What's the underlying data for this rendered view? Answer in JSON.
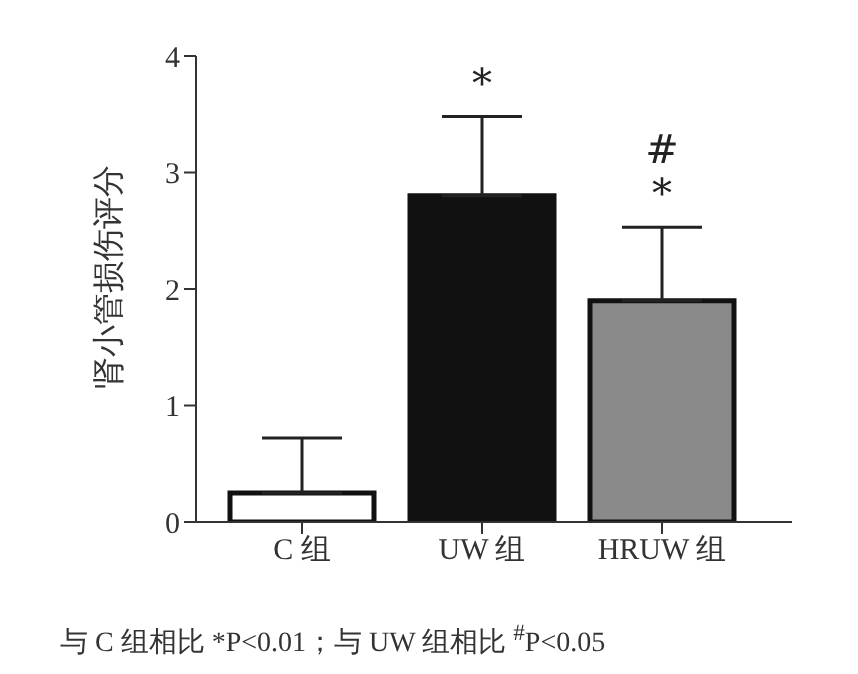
{
  "chart_data": {
    "type": "bar",
    "ylabel": "肾小管损伤评分",
    "categories": [
      "C 组",
      "UW 组",
      "HRUW 组"
    ],
    "values": [
      0.25,
      2.8,
      1.9
    ],
    "errors": [
      [
        0.25,
        0.72
      ],
      [
        2.8,
        3.48
      ],
      [
        1.9,
        2.53
      ]
    ],
    "colors": [
      "#ffffff",
      "#111111",
      "#8a8a8a"
    ],
    "ylim": [
      0,
      4
    ],
    "yticks": [
      0,
      1,
      2,
      3,
      4
    ],
    "grid": false,
    "annotations": [
      "*",
      "*",
      "#",
      "与 C 组相比 *P<0.01；与 UW 组相比 $^{#}$P<0.05"
    ]
  }
}
